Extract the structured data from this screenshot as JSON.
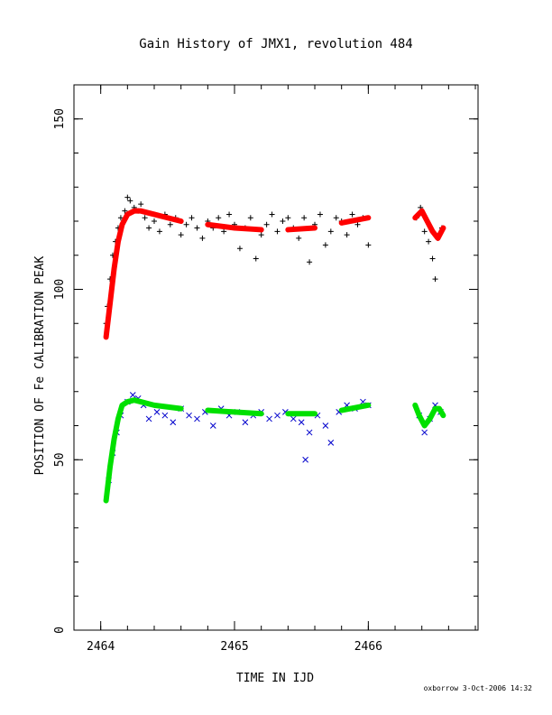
{
  "footer": "oxborrow  3-Oct-2006 14:32",
  "colors": {
    "upper_points": "#000000",
    "upper_fit": "#ff0000",
    "lower_points": "#0000cc",
    "lower_fit": "#00e000"
  },
  "chart_data": {
    "type": "scatter",
    "title": "Gain History of JMX1, revolution 484",
    "xlabel": "TIME IN IJD",
    "ylabel": "POSITION OF Fe CALIBRATION PEAK",
    "xlim": [
      2463.8,
      2466.82
    ],
    "ylim": [
      0,
      160
    ],
    "x_ticks": [
      2464,
      2465,
      2466
    ],
    "x_tick_labels": [
      "2464",
      "2465",
      "2466"
    ],
    "y_ticks": [
      0,
      50,
      100,
      150
    ],
    "y_tick_labels": [
      "0",
      "50",
      "100",
      "150"
    ],
    "grid": false,
    "series": [
      {
        "marker": "+",
        "color": "#000000",
        "x": [
          2464.04,
          2464.05,
          2464.07,
          2464.09,
          2464.11,
          2464.13,
          2464.15,
          2464.18,
          2464.2,
          2464.22,
          2464.25,
          2464.28,
          2464.3,
          2464.33,
          2464.36,
          2464.4,
          2464.44,
          2464.48,
          2464.52,
          2464.56,
          2464.6,
          2464.64,
          2464.68,
          2464.72,
          2464.76,
          2464.8,
          2464.84,
          2464.88,
          2464.92,
          2464.96,
          2465.0,
          2465.04,
          2465.08,
          2465.12,
          2465.16,
          2465.2,
          2465.24,
          2465.28,
          2465.32,
          2465.36,
          2465.4,
          2465.44,
          2465.48,
          2465.52,
          2465.56,
          2465.6,
          2465.64,
          2465.68,
          2465.72,
          2465.76,
          2465.8,
          2465.84,
          2465.88,
          2465.92,
          2465.96,
          2466.0,
          2466.36,
          2466.39,
          2466.42,
          2466.45,
          2466.48,
          2466.5,
          2466.52,
          2466.55
        ],
        "y": [
          90,
          95,
          103,
          110,
          114,
          118,
          121,
          123,
          127,
          126,
          124,
          123,
          125,
          121,
          118,
          120,
          117,
          122,
          119,
          121,
          116,
          119,
          121,
          118,
          115,
          120,
          118,
          121,
          117,
          122,
          119,
          112,
          118,
          121,
          109,
          116,
          119,
          122,
          117,
          120,
          121,
          118,
          115,
          121,
          108,
          119,
          122,
          113,
          117,
          121,
          120,
          116,
          122,
          119,
          121,
          113,
          121,
          124,
          117,
          114,
          109,
          103,
          115,
          118
        ]
      },
      {
        "name": "",
        "marker": "line",
        "color": "#ff0000",
        "x": [
          2464.04,
          2464.07,
          2464.1,
          2464.13,
          2464.16,
          2464.2,
          2464.25,
          2464.3,
          2464.4,
          2464.5,
          2464.6,
          2464.8,
          2465.0,
          2465.2,
          2465.4,
          2465.6,
          2465.8,
          2466.0,
          2466.35,
          2466.4,
          2466.44,
          2466.48,
          2466.52,
          2466.56
        ],
        "y": [
          86,
          96,
          106,
          114,
          119,
          122,
          123,
          123,
          122,
          121,
          120,
          119,
          118,
          117.5,
          117.5,
          118,
          119.5,
          121,
          121,
          123,
          120,
          117,
          115,
          118
        ]
      },
      {
        "marker": "x",
        "color": "#0000cc",
        "x": [
          2464.06,
          2464.09,
          2464.12,
          2464.15,
          2464.2,
          2464.24,
          2464.28,
          2464.32,
          2464.36,
          2464.42,
          2464.48,
          2464.54,
          2464.6,
          2464.66,
          2464.72,
          2464.78,
          2464.84,
          2464.9,
          2464.96,
          2465.02,
          2465.08,
          2465.14,
          2465.2,
          2465.26,
          2465.32,
          2465.38,
          2465.44,
          2465.5,
          2465.53,
          2465.56,
          2465.62,
          2465.68,
          2465.72,
          2465.78,
          2465.84,
          2465.9,
          2465.96,
          2466.0,
          2466.38,
          2466.42,
          2466.46,
          2466.5,
          2466.54
        ],
        "y": [
          44,
          52,
          58,
          63,
          67,
          69,
          68,
          66,
          62,
          64,
          63,
          61,
          65,
          63,
          62,
          64,
          60,
          65,
          63,
          64,
          61,
          63,
          64,
          62,
          63,
          64,
          62,
          61,
          50,
          58,
          63,
          60,
          55,
          64,
          66,
          65,
          67,
          66,
          63,
          58,
          62,
          66,
          64
        ]
      },
      {
        "name": "",
        "marker": "line",
        "color": "#00e000",
        "x": [
          2464.04,
          2464.07,
          2464.1,
          2464.13,
          2464.16,
          2464.2,
          2464.25,
          2464.3,
          2464.4,
          2464.5,
          2464.6,
          2464.8,
          2465.0,
          2465.2,
          2465.4,
          2465.6,
          2465.8,
          2466.0,
          2466.35,
          2466.38,
          2466.42,
          2466.46,
          2466.5,
          2466.53,
          2466.56
        ],
        "y": [
          38,
          48,
          56,
          62,
          66,
          67,
          67.5,
          67,
          66,
          65.5,
          65,
          64.5,
          64,
          63.5,
          63.5,
          63.5,
          64.5,
          66,
          66,
          63,
          60,
          62,
          65,
          65,
          63
        ]
      }
    ]
  }
}
